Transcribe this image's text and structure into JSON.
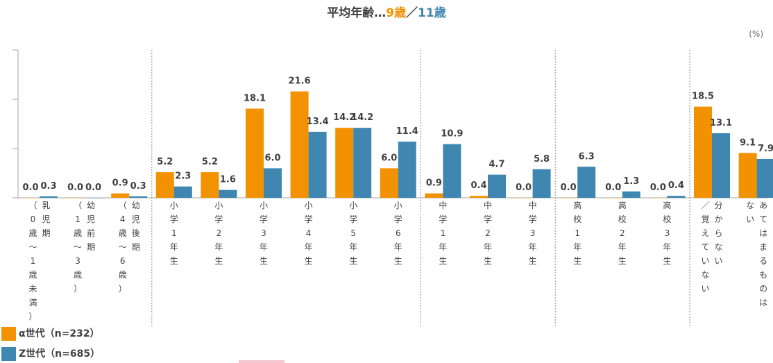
{
  "title": {
    "prefix": "平均年齢…",
    "alpha_avg": "9歳",
    "separator": "／",
    "z_avg": "11歳"
  },
  "unit_label": "(%)",
  "colors": {
    "alpha": "#f39200",
    "z": "#3f86b0",
    "axis": "#a6a6a6",
    "divider": "#8c8c8c",
    "text": "#404040"
  },
  "legend": {
    "alpha_label": "α世代（n=232）",
    "z_label": "Z世代（n=685）"
  },
  "chart_data": {
    "type": "bar",
    "ylim": [
      0,
      30
    ],
    "value_suffix": "",
    "categories": [
      [
        "乳児期",
        "（0歳～1歳未満）"
      ],
      [
        "幼児前期",
        "（1歳～3歳）"
      ],
      [
        "幼児後期",
        "（4歳～6歳）"
      ],
      [
        "小学1年生"
      ],
      [
        "小学2年生"
      ],
      [
        "小学3年生"
      ],
      [
        "小学4年生"
      ],
      [
        "小学5年生"
      ],
      [
        "小学6年生"
      ],
      [
        "中学1年生"
      ],
      [
        "中学2年生"
      ],
      [
        "中学3年生"
      ],
      [
        "高校1年生"
      ],
      [
        "高校2年生"
      ],
      [
        "高校3年生"
      ],
      [
        "分からない",
        "／覚えていない"
      ],
      [
        "あてはまるものは",
        "ない"
      ]
    ],
    "series": [
      {
        "name": "α世代（n=232）",
        "values": [
          0.0,
          0.0,
          0.9,
          5.2,
          5.2,
          18.1,
          21.6,
          14.2,
          6.0,
          0.9,
          0.4,
          0.0,
          0.0,
          0.0,
          0.0,
          18.5,
          9.1
        ]
      },
      {
        "name": "Z世代（n=685）",
        "values": [
          0.3,
          0.0,
          0.3,
          2.3,
          1.6,
          6.0,
          13.4,
          14.2,
          11.4,
          10.9,
          4.7,
          5.8,
          6.3,
          1.3,
          0.4,
          13.1,
          7.9
        ]
      }
    ]
  }
}
